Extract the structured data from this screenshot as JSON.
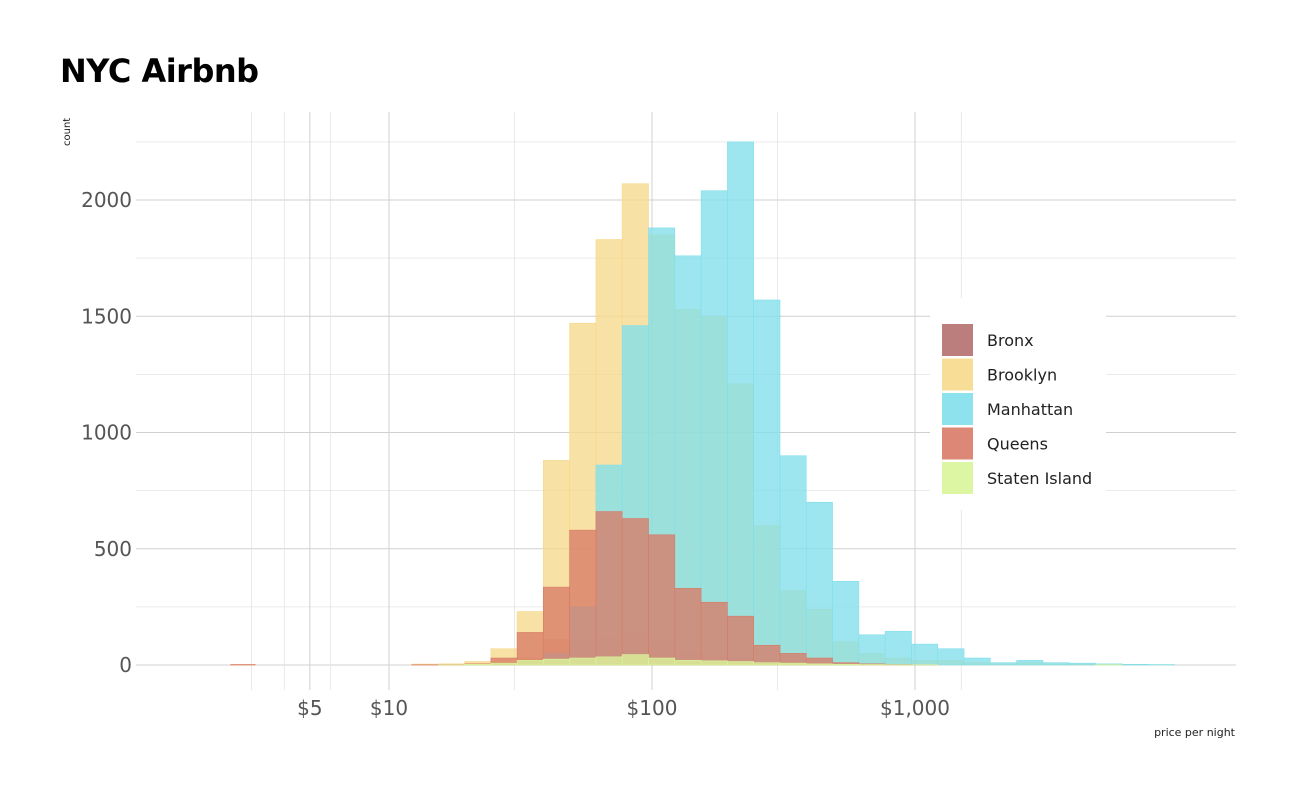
{
  "chart_data": {
    "type": "bar",
    "title": "NYC Airbnb",
    "xlabel": "price per night",
    "ylabel": "count",
    "x_scale": "log10",
    "ylim": [
      0,
      2250
    ],
    "y_ticks": [
      0,
      500,
      1000,
      1500,
      2000
    ],
    "y_tick_labels": [
      "0",
      "500",
      "1000",
      "1500",
      "2000"
    ],
    "x_ticks": [
      5,
      10,
      100,
      1000
    ],
    "x_tick_labels": [
      "$5",
      "$10",
      "$100",
      "$1,000"
    ],
    "grid": true,
    "legend_placement": "right",
    "bin_edges": [
      2.5,
      3.1,
      3.9,
      4.9,
      6.1,
      7.7,
      9.7,
      12.2,
      15.4,
      19.4,
      24.4,
      30.7,
      38.6,
      48.6,
      61.2,
      77.0,
      97.0,
      122.1,
      153.7,
      193.5,
      243.6,
      306.7,
      386.0,
      485.9,
      611.7,
      770.1,
      969.4,
      1220.4,
      1536.4,
      1934.2,
      2434.9,
      3065.3,
      3858.9,
      4858.0,
      6115.7,
      7699.1,
      9692.4
    ],
    "series": [
      {
        "name": "Bronx",
        "color": "#b5706e",
        "values": [
          0,
          0,
          0,
          0,
          0,
          0,
          0,
          0,
          1,
          3,
          10,
          30,
          110,
          100,
          120,
          140,
          100,
          55,
          40,
          30,
          10,
          5,
          3,
          1,
          0,
          0,
          0,
          0,
          0,
          0,
          0,
          0,
          0,
          0,
          0,
          0
        ]
      },
      {
        "name": "Brooklyn",
        "color": "#f6d98a",
        "values": [
          2,
          0,
          0,
          0,
          0,
          0,
          0,
          4,
          5,
          15,
          70,
          230,
          880,
          1470,
          1830,
          2070,
          1850,
          1530,
          1500,
          1210,
          600,
          320,
          240,
          100,
          50,
          30,
          20,
          20,
          10,
          5,
          10,
          5,
          3,
          5,
          2,
          1
        ]
      },
      {
        "name": "Manhattan",
        "color": "#82dfec",
        "values": [
          0,
          0,
          0,
          0,
          0,
          0,
          0,
          0,
          0,
          2,
          5,
          15,
          50,
          250,
          860,
          1460,
          1880,
          1760,
          2040,
          2250,
          1570,
          900,
          700,
          360,
          130,
          145,
          90,
          70,
          30,
          10,
          20,
          10,
          8,
          5,
          3,
          2
        ]
      },
      {
        "name": "Queens",
        "color": "#d97b68",
        "values": [
          2,
          0,
          0,
          0,
          0,
          0,
          0,
          1,
          2,
          5,
          30,
          140,
          335,
          580,
          660,
          630,
          560,
          330,
          270,
          210,
          85,
          50,
          30,
          10,
          5,
          2,
          1,
          0,
          0,
          0,
          0,
          0,
          0,
          0,
          0,
          0
        ]
      },
      {
        "name": "Staten Island",
        "color": "#d9f59a",
        "values": [
          0,
          0,
          0,
          0,
          0,
          0,
          0,
          0,
          1,
          3,
          8,
          20,
          25,
          30,
          35,
          45,
          30,
          20,
          18,
          15,
          10,
          8,
          5,
          3,
          2,
          1,
          1,
          0,
          0,
          0,
          0,
          0,
          0,
          1,
          0,
          0
        ]
      }
    ]
  }
}
